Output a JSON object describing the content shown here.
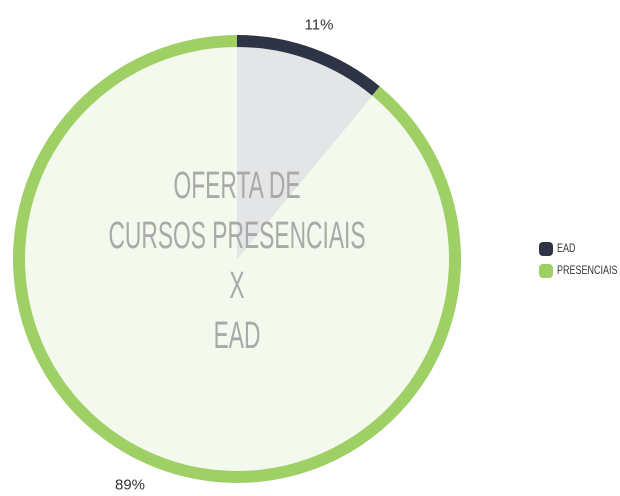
{
  "chart_data": {
    "type": "pie",
    "title": [
      "OFERTA DE",
      "CURSOS PRESENCIAIS",
      "X",
      "EAD"
    ],
    "categories": [
      "EAD",
      "PRESENCIAIS"
    ],
    "values": [
      11,
      89
    ],
    "value_labels": [
      "11%",
      "89%"
    ],
    "colors": [
      "#2d3446",
      "#9fd065"
    ],
    "legend": "right"
  }
}
